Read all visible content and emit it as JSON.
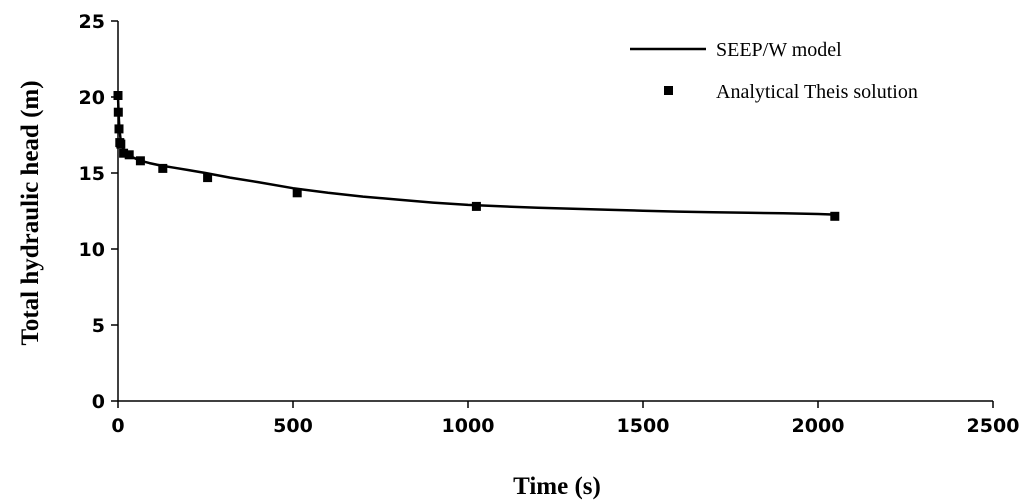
{
  "chart_data": {
    "type": "line",
    "title": "",
    "xlabel": "Time (s)",
    "ylabel": "Total hydraulic head (m)",
    "xlim": [
      0,
      2500
    ],
    "ylim": [
      0,
      25
    ],
    "xticks": [
      0,
      500,
      1000,
      1500,
      2000,
      2500
    ],
    "yticks": [
      0,
      5,
      10,
      15,
      20,
      25
    ],
    "grid": false,
    "legend_position": "top-right",
    "series": [
      {
        "name": "SEEP/W model",
        "style": "line",
        "color": "#000000",
        "x": [
          0,
          2,
          4,
          8,
          12,
          20,
          30,
          45,
          65,
          90,
          120,
          160,
          200,
          250,
          320,
          400,
          500,
          600,
          700,
          800,
          900,
          1000,
          1100,
          1200,
          1300,
          1400,
          1500,
          1600,
          1700,
          1800,
          1900,
          2000,
          2040
        ],
        "y": [
          20.0,
          18.8,
          17.9,
          17.1,
          16.7,
          16.4,
          16.2,
          16.0,
          15.8,
          15.65,
          15.5,
          15.35,
          15.2,
          15.0,
          14.7,
          14.4,
          14.0,
          13.7,
          13.45,
          13.25,
          13.05,
          12.9,
          12.8,
          12.72,
          12.65,
          12.58,
          12.52,
          12.46,
          12.42,
          12.38,
          12.35,
          12.3,
          12.27
        ]
      },
      {
        "name": "Analytical Theis solution",
        "style": "marker",
        "marker": "square",
        "color": "#000000",
        "x": [
          0,
          1,
          3,
          5,
          8,
          16,
          32,
          64,
          128,
          256,
          512,
          1024,
          2048
        ],
        "y": [
          20.1,
          19.0,
          17.9,
          17.0,
          16.9,
          16.3,
          16.2,
          15.8,
          15.3,
          14.7,
          13.7,
          12.8,
          12.15
        ]
      }
    ]
  }
}
